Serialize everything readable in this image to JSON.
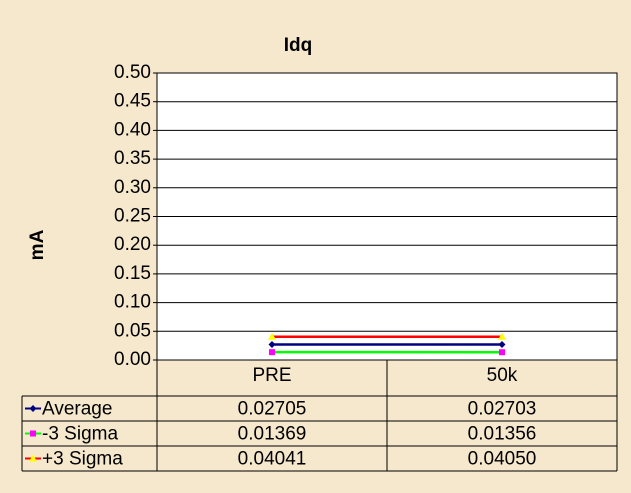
{
  "chart_data": {
    "type": "line",
    "title": "Idq",
    "y_label": "mA",
    "categories": [
      "PRE",
      "50k"
    ],
    "series": [
      {
        "name": "Average",
        "color": "#000080",
        "marker_color": "#000080",
        "marker": "diamond",
        "values": [
          0.02705,
          0.02703
        ]
      },
      {
        "name": "-3 Sigma",
        "color": "#00ff00",
        "marker_color": "#ff00ff",
        "marker": "square",
        "values": [
          0.01369,
          0.01356
        ]
      },
      {
        "name": "+3 Sigma",
        "color": "#ff0000",
        "marker_color": "#ffff00",
        "marker": "triangle",
        "values": [
          0.04041,
          0.0405
        ],
        "value_labels": [
          "0.04041",
          "0.04050"
        ]
      }
    ],
    "ylim": [
      0,
      0.5
    ],
    "yticks": [
      {
        "value": 0,
        "label": "0.00"
      },
      {
        "value": 0.05,
        "label": "0.05"
      },
      {
        "value": 0.1,
        "label": "0.10"
      },
      {
        "value": 0.15,
        "label": "0.15"
      },
      {
        "value": 0.2,
        "label": "0.20"
      },
      {
        "value": 0.25,
        "label": "0.25"
      },
      {
        "value": 0.3,
        "label": "0.30"
      },
      {
        "value": 0.35,
        "label": "0.35"
      },
      {
        "value": 0.4,
        "label": "0.40"
      },
      {
        "value": 0.45,
        "label": "0.45"
      },
      {
        "value": 0.5,
        "label": "0.50"
      }
    ],
    "grid": true,
    "data_table": true
  }
}
